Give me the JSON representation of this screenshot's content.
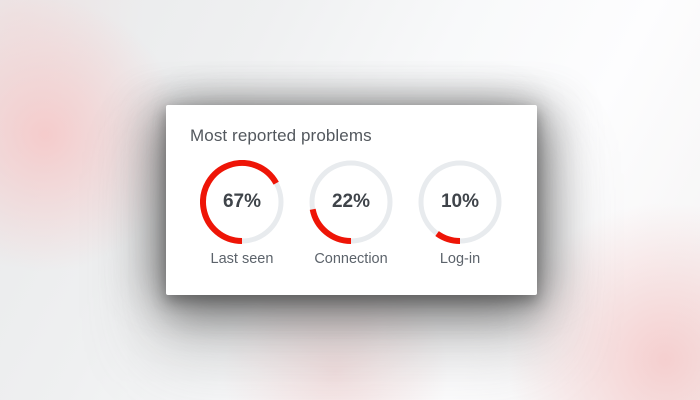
{
  "card": {
    "title": "Most reported problems"
  },
  "chart_data": {
    "type": "donut-set",
    "title": "Most reported problems",
    "start_position": "bottom",
    "sweep_direction": "bottom-left-top-right",
    "items": [
      {
        "label": "Last seen",
        "value": 67,
        "display": "67%"
      },
      {
        "label": "Connection",
        "value": 22,
        "display": "22%"
      },
      {
        "label": "Log-in",
        "value": 10,
        "display": "10%"
      }
    ],
    "colors": {
      "arc": "#ee1507",
      "track": "#e8ebee",
      "percent_text": "#3f444a",
      "label_text": "#5c636b",
      "title_text": "#53585e",
      "card_background": "#ffffff"
    }
  }
}
